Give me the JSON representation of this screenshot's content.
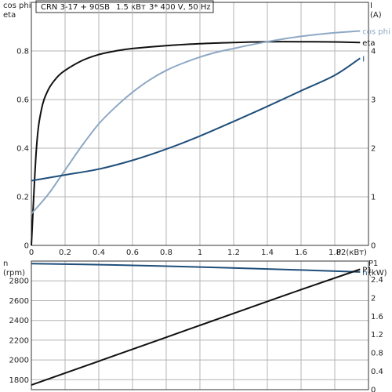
{
  "title": {
    "model": "CRN 3-17 + 90SB",
    "power": "1.5 кВт",
    "supply": "3* 400 V, 50 Hz"
  },
  "colors": {
    "eta": "#111111",
    "cos_phi": "#8ea8c4",
    "current": "#1f4e7a",
    "n": "#1f4e7a",
    "p1": "#111111",
    "grid": "#b4b4b4"
  },
  "chart_data": [
    {
      "type": "line",
      "xlabel": "P2(кВт)",
      "ylabel_left": [
        "cos phi",
        "eta"
      ],
      "ylabel_right": [
        "I",
        "(A)"
      ],
      "xlim": [
        0,
        2.0
      ],
      "ylim_left": [
        0,
        1.0
      ],
      "ylim_right": [
        0,
        5
      ],
      "x_ticks": [
        "0",
        "0.2",
        "0.4",
        "0.6",
        "0.8",
        "1",
        "1.2",
        "1.4",
        "1.6",
        "1.8"
      ],
      "y_left_ticks": [
        "0",
        "0.2",
        "0.4",
        "0.6",
        "0.8"
      ],
      "y_right_ticks": [
        "0",
        "1",
        "2",
        "3",
        "4"
      ],
      "grid": true,
      "series": [
        {
          "name": "eta",
          "axis": "left",
          "color": "#111111",
          "x": [
            0,
            0.03,
            0.06,
            0.1,
            0.15,
            0.2,
            0.3,
            0.4,
            0.5,
            0.6,
            0.8,
            1.0,
            1.2,
            1.4,
            1.6,
            1.8,
            1.95
          ],
          "values": [
            0.0,
            0.4,
            0.56,
            0.64,
            0.69,
            0.72,
            0.76,
            0.785,
            0.8,
            0.81,
            0.822,
            0.83,
            0.835,
            0.838,
            0.838,
            0.837,
            0.835
          ]
        },
        {
          "name": "cos phi",
          "axis": "left",
          "color": "#8ea8c4",
          "x": [
            0,
            0.1,
            0.2,
            0.3,
            0.4,
            0.5,
            0.6,
            0.7,
            0.8,
            0.9,
            1.0,
            1.1,
            1.2,
            1.3,
            1.4,
            1.5,
            1.6,
            1.7,
            1.8,
            1.9,
            1.95
          ],
          "values": [
            0.13,
            0.21,
            0.31,
            0.41,
            0.5,
            0.57,
            0.63,
            0.68,
            0.72,
            0.75,
            0.775,
            0.795,
            0.81,
            0.825,
            0.838,
            0.85,
            0.86,
            0.868,
            0.875,
            0.88,
            0.882
          ]
        },
        {
          "name": "I",
          "axis": "right",
          "color": "#1f4e7a",
          "x": [
            0,
            0.2,
            0.4,
            0.6,
            0.8,
            1.0,
            1.2,
            1.4,
            1.6,
            1.8,
            1.95
          ],
          "values": [
            1.33,
            1.45,
            1.57,
            1.75,
            1.98,
            2.25,
            2.55,
            2.86,
            3.18,
            3.5,
            3.85
          ]
        }
      ]
    },
    {
      "type": "line",
      "ylabel_left": [
        "n",
        "(rpm)"
      ],
      "ylabel_right": [
        "P1",
        "(kW)"
      ],
      "xlim": [
        0,
        2.0
      ],
      "ylim_left": [
        1700,
        3000
      ],
      "ylim_right": [
        0,
        2.8
      ],
      "y_left_ticks": [
        "1800",
        "2000",
        "2200",
        "2400",
        "2600",
        "2800"
      ],
      "y_right_ticks": [
        "0",
        "0.4",
        "0.8",
        "1.2",
        "1.6",
        "2",
        "2.4"
      ],
      "grid": true,
      "series": [
        {
          "name": "n",
          "axis": "left",
          "color": "#1f4e7a",
          "x": [
            0,
            0.5,
            1.0,
            1.5,
            1.95
          ],
          "values": [
            2975,
            2960,
            2940,
            2915,
            2890
          ]
        },
        {
          "name": "P1",
          "axis": "right",
          "color": "#111111",
          "x": [
            0,
            0.5,
            1.0,
            1.5,
            1.95
          ],
          "values": [
            0.1,
            0.75,
            1.4,
            2.05,
            2.62
          ]
        }
      ]
    }
  ]
}
